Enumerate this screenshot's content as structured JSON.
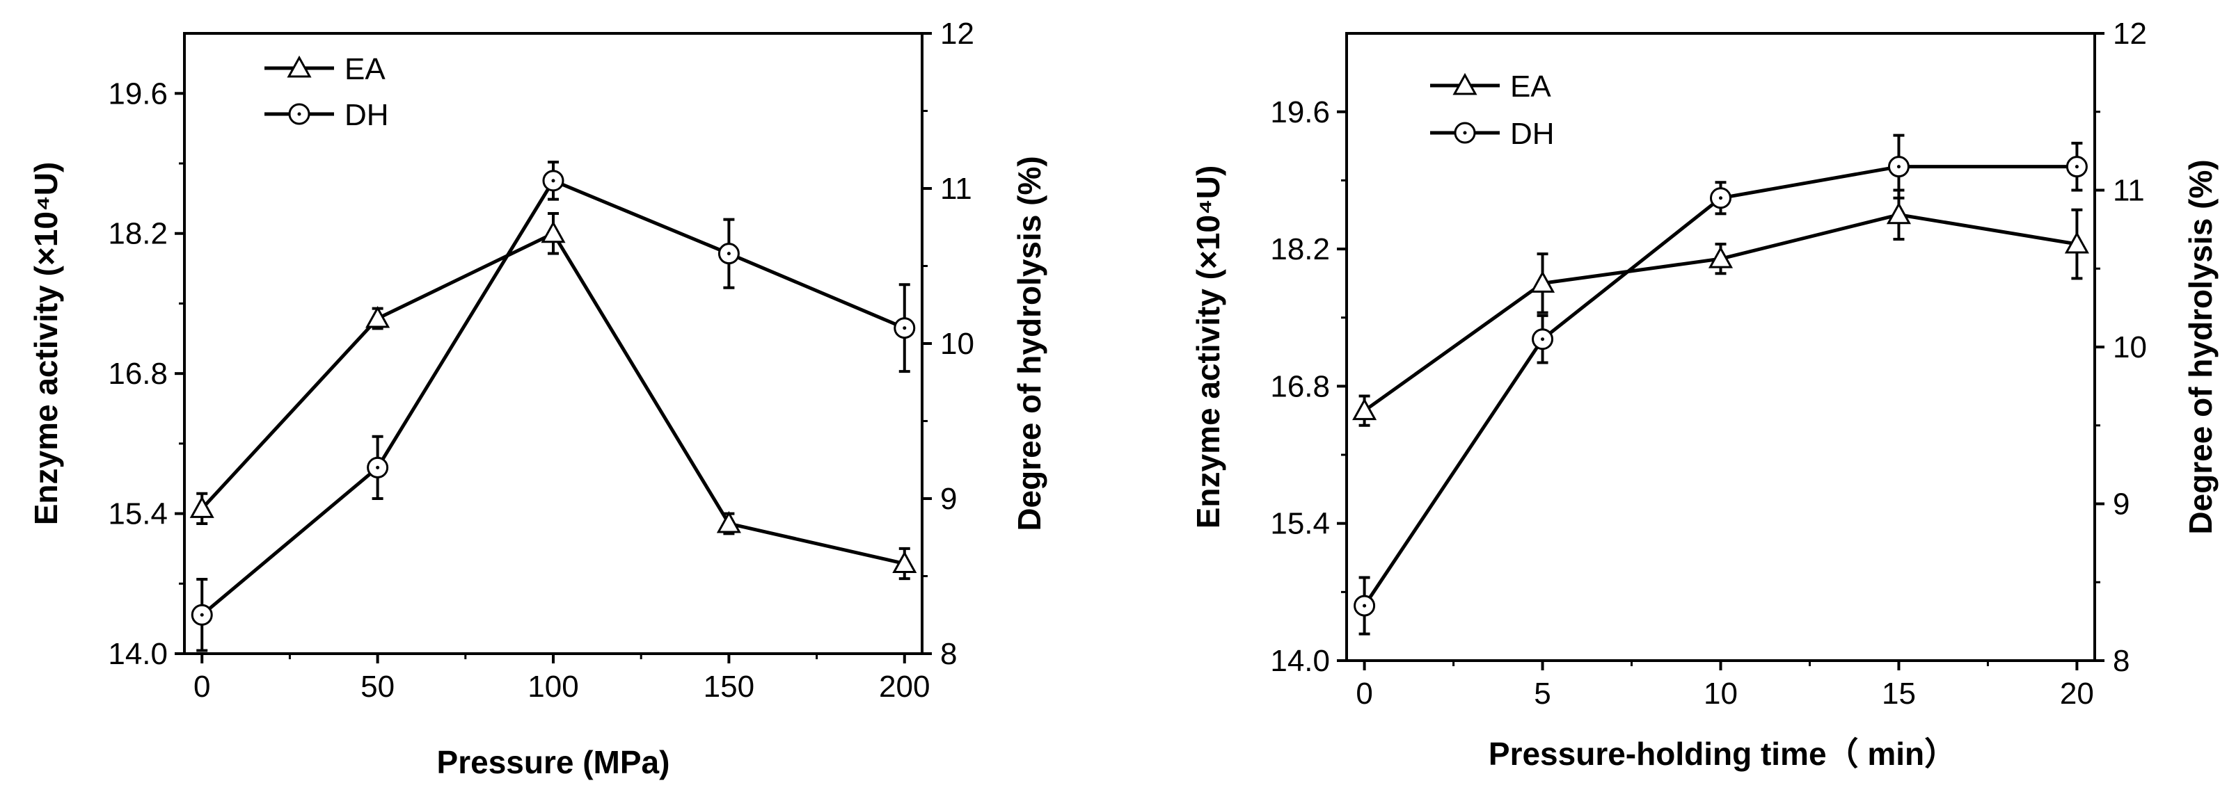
{
  "chart_data": [
    {
      "type": "line",
      "xlabel": "Pressure (MPa)",
      "ylabel_left": "Enzyme activity (×10⁴U)",
      "ylabel_right": "Degree of hydrolysis (%)",
      "x": [
        0,
        50,
        100,
        150,
        200
      ],
      "xlim": [
        -5,
        205
      ],
      "x_ticks": [
        "0",
        "50",
        "100",
        "150",
        "200"
      ],
      "ylim_left": [
        14.0,
        20.2
      ],
      "y_ticks_left": [
        "14.0",
        "15.4",
        "16.8",
        "18.2",
        "19.6"
      ],
      "ylim_right": [
        8,
        12
      ],
      "y_ticks_right": [
        "8",
        "9",
        "10",
        "11",
        "12"
      ],
      "legend_position": "top-left",
      "series": [
        {
          "name": "EA",
          "axis": "left",
          "marker": "triangle",
          "values": [
            15.45,
            17.35,
            18.2,
            15.3,
            14.9
          ],
          "errors": [
            0.15,
            0.1,
            0.2,
            0.1,
            0.15
          ]
        },
        {
          "name": "DH",
          "axis": "right",
          "marker": "circle",
          "values": [
            8.25,
            9.2,
            11.05,
            10.58,
            10.1
          ],
          "errors": [
            0.23,
            0.2,
            0.12,
            0.22,
            0.28
          ]
        }
      ]
    },
    {
      "type": "line",
      "xlabel": "Pressure-holding time（ min）",
      "ylabel_left": "Enzyme activity (×10⁴U)",
      "ylabel_right": "Degree of hydrolysis (%)",
      "x": [
        0,
        5,
        10,
        15,
        20
      ],
      "xlim": [
        -0.5,
        20.5
      ],
      "x_ticks": [
        "0",
        "5",
        "10",
        "15",
        "20"
      ],
      "ylim_left": [
        14.0,
        20.4
      ],
      "y_ticks_left": [
        "14.0",
        "15.4",
        "16.8",
        "18.2",
        "19.6"
      ],
      "ylim_right": [
        8,
        12
      ],
      "y_ticks_right": [
        "8",
        "9",
        "10",
        "11",
        "12"
      ],
      "legend_position": "top-left",
      "series": [
        {
          "name": "EA",
          "axis": "left",
          "marker": "triangle",
          "values": [
            16.55,
            17.85,
            18.1,
            18.55,
            18.25
          ],
          "errors": [
            0.15,
            0.3,
            0.15,
            0.25,
            0.35
          ]
        },
        {
          "name": "DH",
          "axis": "right",
          "marker": "circle",
          "values": [
            8.35,
            10.05,
            10.95,
            11.15,
            11.15
          ],
          "errors": [
            0.18,
            0.15,
            0.1,
            0.2,
            0.15
          ]
        }
      ]
    }
  ]
}
